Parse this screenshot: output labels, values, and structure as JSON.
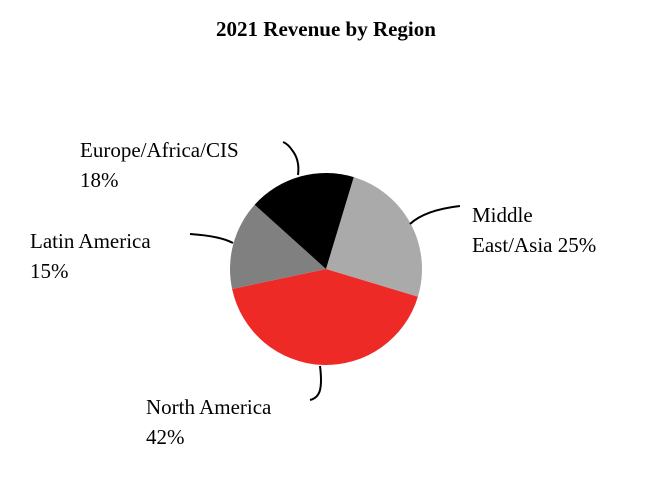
{
  "chart_data": {
    "type": "pie",
    "title": "2021 Revenue by Region",
    "slices": [
      {
        "label_lines": [
          "Middle",
          "East/Asia 25%"
        ],
        "label": "Middle East/Asia",
        "value": 25,
        "color": "#aaaaaa"
      },
      {
        "label_lines": [
          "North America",
          "42%"
        ],
        "label": "North America",
        "value": 42,
        "color": "#ee2a27"
      },
      {
        "label_lines": [
          "Latin America",
          "15%"
        ],
        "label": "Latin America",
        "value": 15,
        "color": "#808080"
      },
      {
        "label_lines": [
          "Europe/Africa/CIS",
          "18%"
        ],
        "label": "Europe/Africa/CIS",
        "value": 18,
        "color": "#000000"
      }
    ],
    "legend": "none"
  }
}
